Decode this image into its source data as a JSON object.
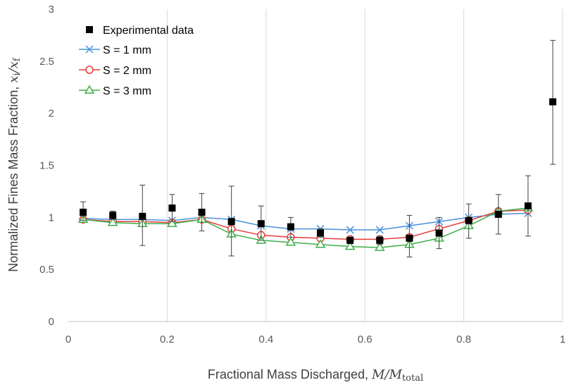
{
  "chart_data": {
    "type": "scatter",
    "xlabel": "Fractional Mass Discharged, ",
    "xlabel_math": "M/M",
    "xlabel_math_sub": "total",
    "ylabel": "Normalized Fines Mass Fraction, ",
    "ylabel_math": "x",
    "ylabel_math_sub_i": "i",
    "ylabel_math_slash": "/",
    "ylabel_math_sub_f": "f",
    "xlim": [
      0,
      1
    ],
    "ylim": [
      0,
      3
    ],
    "x_ticks": [
      0,
      0.2,
      0.4,
      0.6,
      0.8,
      1
    ],
    "x_tick_labels": [
      "0",
      "0.2",
      "0.4",
      "0.6",
      "0.8",
      "1"
    ],
    "y_ticks": [
      0,
      0.5,
      1,
      1.5,
      2,
      2.5,
      3
    ],
    "y_tick_labels": [
      "0",
      "0.5",
      "1",
      "1.5",
      "2",
      "2.5",
      "3"
    ],
    "grid": "vertical",
    "legend_position": "top-left",
    "experimental": {
      "name": "Experimental data",
      "color": "#000000",
      "points": [
        {
          "x": 0.03,
          "y": 1.05,
          "err_lo": 0.97,
          "err_hi": 1.15
        },
        {
          "x": 0.09,
          "y": 1.02,
          "err_lo": 0.98,
          "err_hi": 1.06
        },
        {
          "x": 0.15,
          "y": 1.01,
          "err_lo": 0.73,
          "err_hi": 1.31
        },
        {
          "x": 0.21,
          "y": 1.09,
          "err_lo": 0.96,
          "err_hi": 1.22
        },
        {
          "x": 0.27,
          "y": 1.05,
          "err_lo": 0.87,
          "err_hi": 1.23
        },
        {
          "x": 0.33,
          "y": 0.96,
          "err_lo": 0.63,
          "err_hi": 1.3
        },
        {
          "x": 0.39,
          "y": 0.94,
          "err_lo": 0.78,
          "err_hi": 1.11
        },
        {
          "x": 0.45,
          "y": 0.91,
          "err_lo": 0.81,
          "err_hi": 1.0
        },
        {
          "x": 0.51,
          "y": 0.85,
          "err_lo": 0.81,
          "err_hi": 0.89
        },
        {
          "x": 0.57,
          "y": 0.78,
          "err_lo": 0.75,
          "err_hi": 0.81
        },
        {
          "x": 0.63,
          "y": 0.78,
          "err_lo": 0.74,
          "err_hi": 0.82
        },
        {
          "x": 0.69,
          "y": 0.8,
          "err_lo": 0.62,
          "err_hi": 1.02
        },
        {
          "x": 0.75,
          "y": 0.85,
          "err_lo": 0.7,
          "err_hi": 1.0
        },
        {
          "x": 0.81,
          "y": 0.97,
          "err_lo": 0.8,
          "err_hi": 1.13
        },
        {
          "x": 0.87,
          "y": 1.03,
          "err_lo": 0.84,
          "err_hi": 1.22
        },
        {
          "x": 0.93,
          "y": 1.11,
          "err_lo": 0.82,
          "err_hi": 1.4
        },
        {
          "x": 0.98,
          "y": 2.11,
          "err_lo": 1.51,
          "err_hi": 2.7
        }
      ]
    },
    "x": [
      0.03,
      0.09,
      0.15,
      0.21,
      0.27,
      0.33,
      0.39,
      0.45,
      0.51,
      0.57,
      0.63,
      0.69,
      0.75,
      0.81,
      0.87,
      0.93
    ],
    "series": [
      {
        "name": "S = 1 mm",
        "color": "#4a90d9",
        "marker": "x",
        "values": [
          0.99,
          0.98,
          0.98,
          0.97,
          1.0,
          0.98,
          0.92,
          0.89,
          0.89,
          0.88,
          0.88,
          0.92,
          0.96,
          1.0,
          1.03,
          1.04
        ]
      },
      {
        "name": "S = 2 mm",
        "color": "#e63b3b",
        "marker": "circle",
        "values": [
          0.98,
          0.96,
          0.96,
          0.95,
          0.98,
          0.89,
          0.83,
          0.81,
          0.8,
          0.79,
          0.79,
          0.81,
          0.89,
          0.97,
          1.06,
          1.07
        ]
      },
      {
        "name": "S = 3 mm",
        "color": "#3fae49",
        "marker": "triangle",
        "values": [
          0.98,
          0.95,
          0.94,
          0.94,
          0.98,
          0.84,
          0.78,
          0.76,
          0.74,
          0.72,
          0.71,
          0.74,
          0.8,
          0.92,
          1.06,
          1.09
        ]
      }
    ]
  }
}
